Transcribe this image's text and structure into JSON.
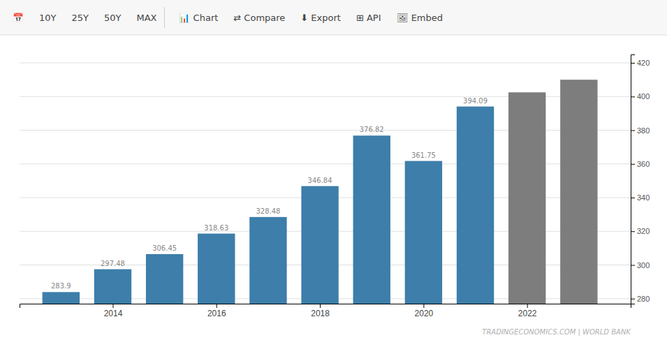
{
  "chart_data": {
    "type": "bar",
    "x": [
      2013,
      2014,
      2015,
      2016,
      2017,
      2018,
      2019,
      2020,
      2021,
      2022,
      2023
    ],
    "values": [
      283.9,
      297.48,
      306.45,
      318.63,
      328.48,
      346.84,
      376.82,
      361.75,
      394.09,
      402.5,
      410.0
    ],
    "value_labels": [
      "283.9",
      "297.48",
      "306.45",
      "318.63",
      "328.48",
      "346.84",
      "376.82",
      "361.75",
      "394.09",
      null,
      null
    ],
    "data_labels": true,
    "colors": [
      "#3d7eaa",
      "#3d7eaa",
      "#3d7eaa",
      "#3d7eaa",
      "#3d7eaa",
      "#3d7eaa",
      "#3d7eaa",
      "#3d7eaa",
      "#3d7eaa",
      "#7d7d7d",
      "#7d7d7d"
    ],
    "xlim": [
      2012.2,
      2024.0
    ],
    "xticks": [
      2014,
      2016,
      2018,
      2020,
      2022
    ],
    "ylim": [
      277,
      425
    ],
    "yticks": [
      280,
      300,
      320,
      340,
      360,
      380,
      400,
      420
    ],
    "grid": true,
    "annotations": [
      "📅",
      "10Y",
      "25Y",
      "50Y",
      "MAX",
      "📊 Chart",
      "⇄ Compare",
      "⬇ Export",
      "⊞ API",
      "🖼 Embed",
      "TRADINGECONOMICS.COM | WORLD BANK"
    ]
  }
}
